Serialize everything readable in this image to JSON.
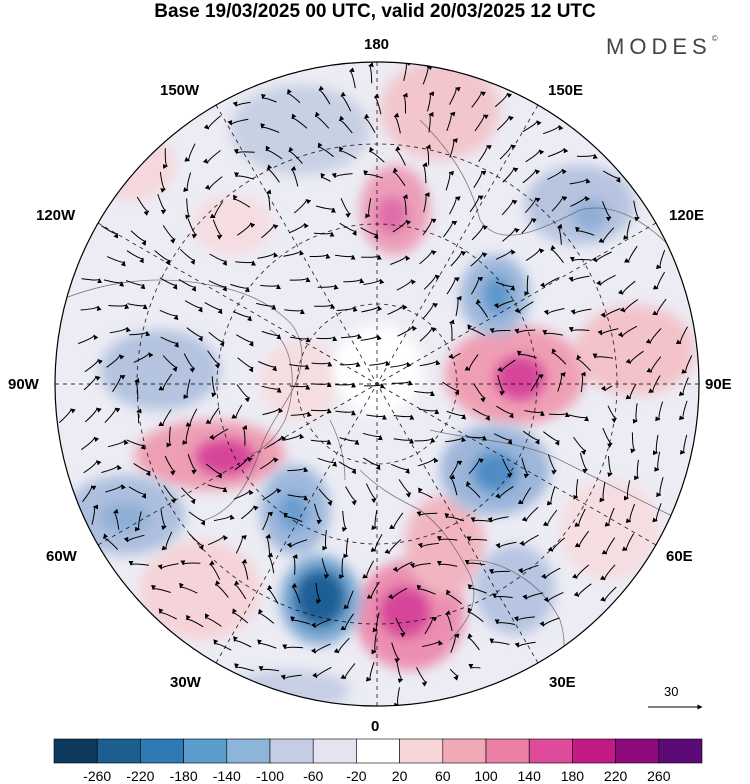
{
  "header": {
    "title": "Base 19/03/2025 00 UTC, valid 20/03/2025 12 UTC",
    "brand": "MODES",
    "brand_mark": "©"
  },
  "map": {
    "projection": "north-polar-stereographic",
    "longitude_labels": {
      "top": "180",
      "bottom": "0",
      "left": "90W",
      "right": "90E",
      "upper_left_1": "150W",
      "upper_left_2": "120W",
      "lower_left_1": "60W",
      "lower_left_2": "30W",
      "upper_right_1": "150E",
      "upper_right_2": "120E",
      "lower_right_1": "60E",
      "lower_right_2": "30E"
    },
    "reference_vector": {
      "value": "30"
    },
    "colors": {
      "neg_strong": "#15406a",
      "neg_mid": "#3f82bd",
      "neg_weak": "#c6cee3",
      "neg_faint": "#e6e6f1",
      "pos_faint": "#f6dde1",
      "pos_weak": "#f1b5bd",
      "pos_mid": "#e36ba0",
      "pos_strong": "#a5127f",
      "land": "#d9d9d9"
    }
  },
  "colorbar": {
    "ticks": [
      "-260",
      "-220",
      "-180",
      "-140",
      "-100",
      "-60",
      "-20",
      "20",
      "60",
      "100",
      "140",
      "180",
      "220",
      "260"
    ],
    "colors": [
      "#0d3a5c",
      "#1b5e8f",
      "#2f79b5",
      "#5a9ccc",
      "#8db5d9",
      "#c4cde4",
      "#e4e4f0",
      "#ffffff",
      "#f7d4d8",
      "#f1a9b5",
      "#ec7fa6",
      "#df4b9b",
      "#c21b86",
      "#8f0b7b",
      "#5c0a75"
    ]
  }
}
